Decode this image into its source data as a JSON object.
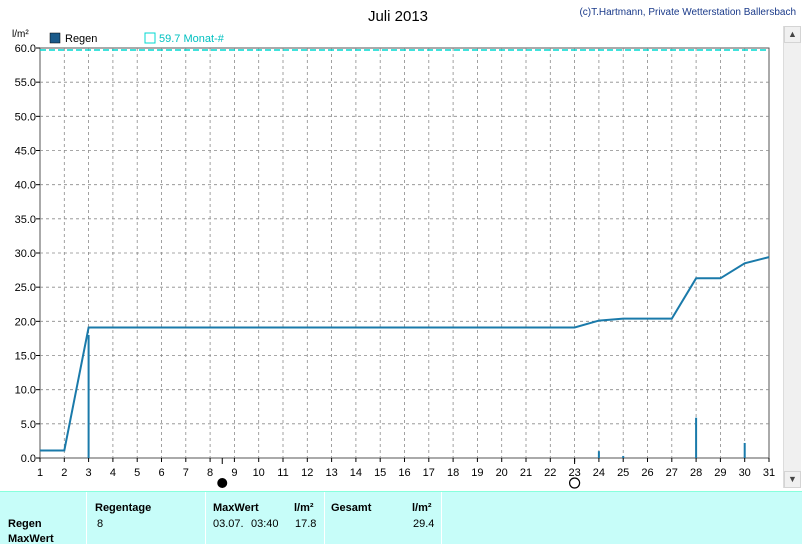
{
  "header": {
    "copyright": "(c)T.Hartmann, Private Wetterstation Ballersbach"
  },
  "colors": {
    "series": "#1a7aaa",
    "reference": "#00d8d0",
    "grid": "#8a8a8a",
    "panel": "#c7fdf9"
  },
  "chart_data": {
    "type": "line",
    "title": "Juli 2013",
    "ylabel": "l/m²",
    "xlabel": "",
    "xlim": [
      1,
      31
    ],
    "ylim": [
      0,
      60
    ],
    "x_ticks": [
      1,
      2,
      3,
      4,
      5,
      6,
      7,
      8,
      9,
      10,
      11,
      12,
      13,
      14,
      15,
      16,
      17,
      18,
      19,
      20,
      21,
      22,
      23,
      24,
      25,
      26,
      27,
      28,
      29,
      30,
      31
    ],
    "y_ticks": [
      "0.0",
      "5.0",
      "10.0",
      "15.0",
      "20.0",
      "25.0",
      "30.0",
      "35.0",
      "40.0",
      "45.0",
      "50.0",
      "55.0",
      "60.0"
    ],
    "grid": true,
    "legend": [
      {
        "label": "Regen",
        "marker": "filled-square"
      },
      {
        "label": "59.7 Monat-#",
        "marker": "hollow-square"
      }
    ],
    "series": [
      {
        "name": "Regen",
        "kind": "cumulative-line",
        "points": [
          [
            1,
            1.1
          ],
          [
            2,
            1.1
          ],
          [
            3,
            19.1
          ],
          [
            23,
            19.1
          ],
          [
            24,
            20.1
          ],
          [
            25,
            20.4
          ],
          [
            27,
            20.4
          ],
          [
            28,
            26.3
          ],
          [
            29,
            26.3
          ],
          [
            30,
            28.5
          ],
          [
            31,
            29.4
          ]
        ]
      },
      {
        "name": "Regen",
        "kind": "daily-bars",
        "points": [
          [
            3,
            18.0
          ],
          [
            24,
            1.0
          ],
          [
            25,
            0.3
          ],
          [
            28,
            5.9
          ],
          [
            30,
            2.2
          ]
        ]
      },
      {
        "name": "59.7 Monat-#",
        "kind": "reference-line",
        "value": 59.7
      }
    ],
    "moon_phases": [
      {
        "x": 8.5,
        "phase": "new-moon"
      },
      {
        "x": 23.0,
        "phase": "full-moon"
      }
    ]
  },
  "summary": {
    "row_labels": [
      "Regen",
      "MaxWert"
    ],
    "regentage_label": "Regentage",
    "regentage_value": "8",
    "maxwert_label": "MaxWert",
    "maxwert_unit": "l/m²",
    "maxwert_date": "03.07.",
    "maxwert_time": "03:40",
    "maxwert_value": "17.8",
    "gesamt_label": "Gesamt",
    "gesamt_unit": "l/m²",
    "gesamt_value": "29.4"
  }
}
